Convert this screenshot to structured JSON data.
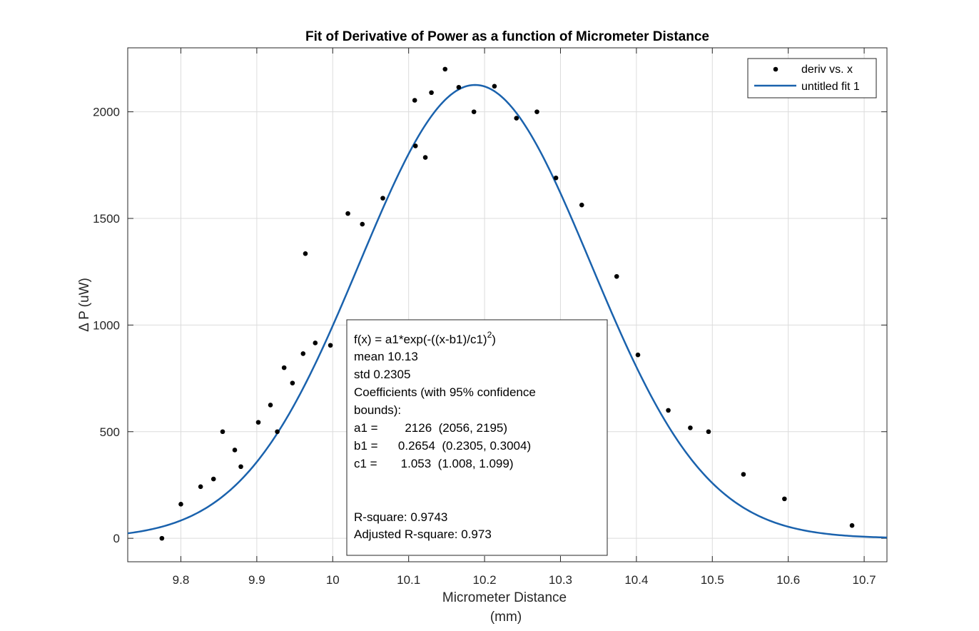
{
  "chart_data": {
    "type": "scatter",
    "title": "Fit of Derivative of Power as a function of Micrometer Distance",
    "xlabel_line1": "Micrometer Distance",
    "xlabel_line2": "(mm)",
    "ylabel": "Δ P (uW)",
    "xlim": [
      9.73,
      10.73
    ],
    "ylim": [
      -110,
      2300
    ],
    "xticks": [
      9.8,
      9.9,
      10,
      10.1,
      10.2,
      10.3,
      10.4,
      10.5,
      10.6,
      10.7
    ],
    "xtick_labels": [
      "9.8",
      "9.9",
      "10",
      "10.1",
      "10.2",
      "10.3",
      "10.4",
      "10.5",
      "10.6",
      "10.7"
    ],
    "yticks": [
      0,
      500,
      1000,
      1500,
      2000
    ],
    "ytick_labels": [
      "0",
      "500",
      "1000",
      "1500",
      "2000"
    ],
    "grid": true,
    "legend_position": "top-right",
    "series": [
      {
        "name": "deriv vs. x",
        "kind": "points",
        "color": "#000000",
        "x": [
          9.775,
          9.8,
          9.826,
          9.843,
          9.855,
          9.871,
          9.879,
          9.902,
          9.918,
          9.927,
          9.936,
          9.947,
          9.961,
          9.964,
          9.977,
          9.997,
          10.02,
          10.039,
          10.066,
          10.108,
          10.109,
          10.122,
          10.13,
          10.148,
          10.166,
          10.186,
          10.213,
          10.242,
          10.269,
          10.294,
          10.328,
          10.374,
          10.402,
          10.442,
          10.471,
          10.495,
          10.541,
          10.595,
          10.684
        ],
        "y": [
          0,
          160,
          242,
          278,
          500,
          414,
          336,
          544,
          625,
          500,
          800,
          728,
          866,
          1335,
          916,
          905,
          1523,
          1473,
          1595,
          2054,
          1840,
          1786,
          2090,
          2200,
          2115,
          2000,
          2120,
          1970,
          2000,
          1690,
          1563,
          1228,
          860,
          600,
          518,
          500,
          300,
          185,
          60
        ]
      },
      {
        "name": "untitled fit 1",
        "kind": "gaussian_fit",
        "color": "#1a62ad",
        "amplitude": 2126,
        "center": 10.1875,
        "width": 0.2154
      }
    ],
    "annotation": {
      "lines": [
        "f(x) =  a1*exp(-((x-b1)/c1)",
        "mean 10.13",
        "std 0.2305",
        "Coefficients (with 95% confidence",
        "bounds):",
        "a1 =        2126  (2056, 2195)",
        "b1 =      0.2654  (0.2305, 0.3004)",
        "c1 =       1.053  (1.008, 1.099)",
        "",
        "",
        "R-square: 0.9743",
        "Adjusted R-square: 0.973"
      ],
      "first_line_superscript": "2",
      "first_line_suffix": ")"
    }
  }
}
